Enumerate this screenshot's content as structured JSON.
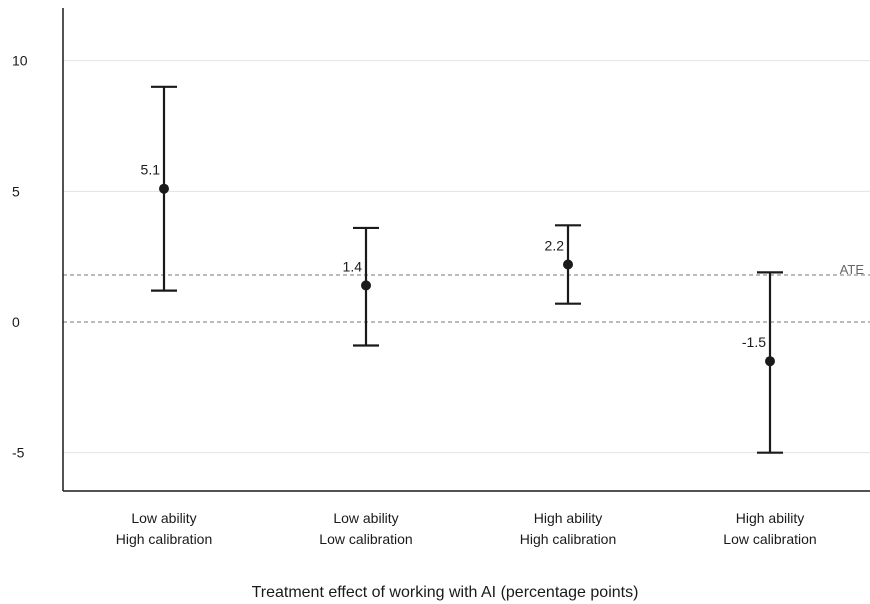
{
  "chart_data": {
    "type": "errorbar",
    "xlabel": "Treatment effect of working with AI (percentage points)",
    "ylabel": "",
    "ylim": [
      -6.5,
      12
    ],
    "yticks": [
      -5,
      0,
      5,
      10
    ],
    "grid": "horizontal",
    "categories": [
      [
        "Low ability",
        "High calibration"
      ],
      [
        "Low ability",
        "Low calibration"
      ],
      [
        "High ability",
        "High calibration"
      ],
      [
        "High ability",
        "Low calibration"
      ]
    ],
    "points": [
      {
        "value": 5.1,
        "lower": 1.2,
        "upper": 9.0,
        "label": "5.1"
      },
      {
        "value": 1.4,
        "lower": -0.9,
        "upper": 3.6,
        "label": "1.4"
      },
      {
        "value": 2.2,
        "lower": 0.7,
        "upper": 3.7,
        "label": "2.2"
      },
      {
        "value": -1.5,
        "lower": -5.0,
        "upper": 1.9,
        "label": "-1.5"
      }
    ],
    "reference_lines": [
      {
        "value": 1.8,
        "label": "ATE",
        "style": "dashed"
      },
      {
        "value": 0,
        "label": "",
        "style": "dashed"
      }
    ],
    "colors": {
      "marker": "#1a1a1a",
      "axis": "#1a1a1a",
      "grid": "#e2e2e2",
      "reference": "#777777"
    }
  }
}
